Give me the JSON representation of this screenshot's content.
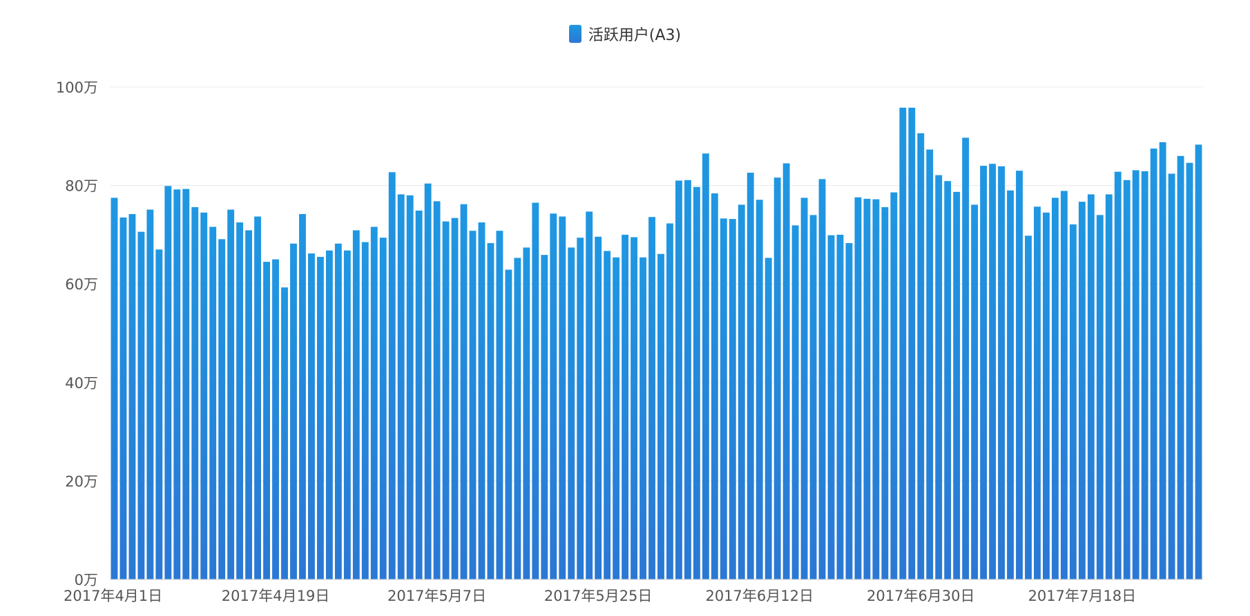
{
  "chart_data": {
    "type": "bar",
    "series": [
      {
        "name": "活跃用户(A3)",
        "values": [
          77.5,
          73.5,
          74.2,
          70.6,
          75.1,
          67.0,
          79.9,
          79.2,
          79.3,
          75.6,
          74.5,
          71.6,
          69.1,
          75.1,
          72.5,
          70.9,
          73.7,
          64.5,
          65.0,
          59.3,
          68.2,
          74.2,
          66.2,
          65.5,
          66.8,
          68.2,
          66.8,
          70.9,
          68.5,
          71.6,
          69.4,
          82.7,
          78.2,
          78.0,
          74.9,
          80.4,
          76.8,
          72.7,
          73.4,
          76.2,
          70.8,
          72.5,
          68.3,
          70.8,
          62.9,
          65.3,
          67.4,
          76.5,
          65.9,
          74.3,
          73.7,
          67.4,
          69.4,
          74.7,
          69.6,
          66.7,
          65.4,
          70.0,
          69.5,
          65.4,
          73.6,
          66.1,
          72.3,
          81.0,
          81.1,
          79.7,
          86.5,
          78.4,
          73.3,
          73.2,
          76.1,
          82.6,
          77.1,
          65.3,
          81.6,
          84.5,
          71.9,
          77.5,
          74.0,
          81.3,
          69.9,
          70.0,
          68.3,
          77.6,
          77.3,
          77.2,
          75.6,
          78.6,
          95.8,
          95.8,
          90.6,
          87.3,
          82.1,
          80.9,
          78.7,
          89.7,
          76.1,
          84.0,
          84.4,
          83.9,
          79.0,
          83.0,
          69.8,
          75.7,
          74.5,
          77.5,
          78.9,
          72.1,
          76.7,
          78.2,
          74.0,
          78.2,
          82.8,
          81.1,
          83.1,
          82.9,
          87.5,
          88.8,
          82.4,
          86.0,
          84.6,
          88.3
        ]
      }
    ],
    "yticks": [
      "0万",
      "20万",
      "40万",
      "60万",
      "80万",
      "100万"
    ],
    "ylim": [
      0,
      100
    ],
    "xtick_labels": [
      "2017年4月1日",
      "2017年4月19日",
      "2017年5月7日",
      "2017年5月25日",
      "2017年6月12日",
      "2017年6月30日",
      "2017年7月18日"
    ],
    "xtick_every": 18,
    "grid": true,
    "legend_position": "top-center",
    "bar_color_top": "#1f97e2",
    "bar_color_bottom": "#2a78d4",
    "grid_color": "#e8e8e8",
    "text_color": "#555555"
  }
}
